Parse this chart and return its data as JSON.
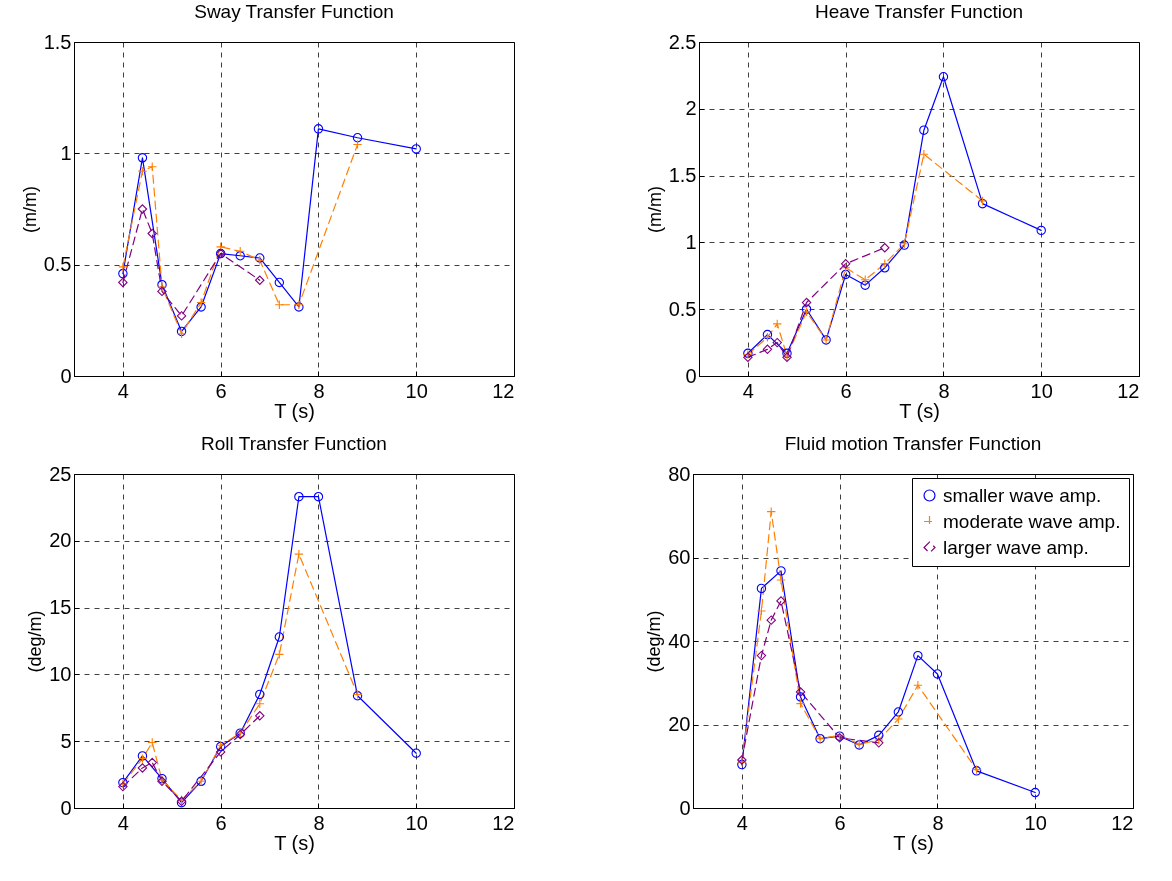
{
  "chart_data": [
    {
      "type": "line",
      "title": "Sway Transfer Function",
      "xlabel": "T (s)",
      "ylabel": "(m/m)",
      "xlim": [
        3,
        12
      ],
      "xticks": [
        4,
        6,
        8,
        10,
        12
      ],
      "ylim": [
        0,
        1.5
      ],
      "yticks": [
        0,
        0.5,
        1,
        1.5
      ],
      "grid": true,
      "legend": false,
      "series": [
        {
          "color": "#0000ff",
          "marker": "circle",
          "line_style": "solid",
          "x": [
            4,
            4.4,
            4.8,
            5.2,
            5.6,
            6,
            6.4,
            6.8,
            7.2,
            7.6,
            8,
            8.8,
            10
          ],
          "values": [
            0.46,
            0.98,
            0.41,
            0.2,
            0.31,
            0.55,
            0.54,
            0.53,
            0.42,
            0.31,
            1.11,
            1.07,
            1.02
          ]
        },
        {
          "color": "#ff8000",
          "marker": "cross",
          "line_style": "dashed",
          "x": [
            4,
            4.4,
            4.6,
            4.8,
            5.2,
            5.6,
            6,
            6.4,
            6.8,
            7.2,
            7.6,
            8.8
          ],
          "values": [
            0.49,
            0.92,
            0.94,
            0.4,
            0.19,
            0.33,
            0.58,
            0.56,
            0.52,
            0.32,
            0.32,
            1.04
          ]
        },
        {
          "color": "#800080",
          "marker": "diamond",
          "line_style": "dashed",
          "x": [
            4,
            4.4,
            4.6,
            4.8,
            5.2,
            6,
            6.8
          ],
          "values": [
            0.42,
            0.75,
            0.64,
            0.38,
            0.27,
            0.55,
            0.43
          ]
        }
      ]
    },
    {
      "type": "line",
      "title": "Heave Transfer Function",
      "xlabel": "T (s)",
      "ylabel": "(m/m)",
      "xlim": [
        3,
        12
      ],
      "xticks": [
        4,
        6,
        8,
        10,
        12
      ],
      "ylim": [
        0,
        2.5
      ],
      "yticks": [
        0,
        0.5,
        1,
        1.5,
        2,
        2.5
      ],
      "grid": true,
      "legend": false,
      "series": [
        {
          "color": "#0000ff",
          "marker": "circle",
          "line_style": "solid",
          "x": [
            4,
            4.4,
            4.8,
            5.2,
            5.6,
            6,
            6.4,
            6.8,
            7.2,
            7.6,
            8,
            8.8,
            10
          ],
          "values": [
            0.17,
            0.31,
            0.17,
            0.5,
            0.27,
            0.76,
            0.68,
            0.81,
            0.98,
            1.84,
            2.24,
            1.29,
            1.09
          ]
        },
        {
          "color": "#ff8000",
          "marker": "cross",
          "line_style": "dashed",
          "x": [
            4,
            4.4,
            4.6,
            4.8,
            5.2,
            5.6,
            6,
            6.4,
            6.8,
            7.2,
            7.6,
            8.8
          ],
          "values": [
            0.16,
            0.29,
            0.39,
            0.15,
            0.48,
            0.27,
            0.81,
            0.72,
            0.84,
            0.99,
            1.66,
            1.31
          ]
        },
        {
          "color": "#800080",
          "marker": "diamond",
          "line_style": "dashed",
          "x": [
            4,
            4.4,
            4.6,
            4.8,
            5.2,
            6,
            6.8
          ],
          "values": [
            0.14,
            0.2,
            0.25,
            0.14,
            0.55,
            0.84,
            0.96
          ]
        }
      ]
    },
    {
      "type": "line",
      "title": "Roll Transfer Function",
      "xlabel": "T (s)",
      "ylabel": "(deg/m)",
      "xlim": [
        3,
        12
      ],
      "xticks": [
        4,
        6,
        8,
        10,
        12
      ],
      "ylim": [
        0,
        25
      ],
      "yticks": [
        0,
        5,
        10,
        15,
        20,
        25
      ],
      "grid": true,
      "legend": false,
      "series": [
        {
          "color": "#0000ff",
          "marker": "circle",
          "line_style": "solid",
          "x": [
            4,
            4.4,
            4.8,
            5.2,
            5.6,
            6,
            6.4,
            6.8,
            7.2,
            7.6,
            8,
            8.8,
            10
          ],
          "values": [
            1.9,
            3.9,
            2.2,
            0.4,
            2,
            4.6,
            5.6,
            8.5,
            12.8,
            23.3,
            23.3,
            8.4,
            4.1
          ]
        },
        {
          "color": "#ff8000",
          "marker": "cross",
          "line_style": "dashed",
          "x": [
            4,
            4.4,
            4.6,
            4.8,
            5.2,
            5.6,
            6,
            6.4,
            6.8,
            7.2,
            7.6,
            8.8
          ],
          "values": [
            1.8,
            3.7,
            4.9,
            2.1,
            0.6,
            2,
            4.7,
            5.6,
            7.8,
            11.5,
            19,
            8.5
          ]
        },
        {
          "color": "#800080",
          "marker": "diamond",
          "line_style": "dashed",
          "x": [
            4,
            4.4,
            4.6,
            4.8,
            5.2,
            6,
            6.4,
            6.8
          ],
          "values": [
            1.6,
            3,
            3.4,
            2,
            0.5,
            4.2,
            5.5,
            6.9
          ]
        }
      ]
    },
    {
      "type": "line",
      "title": "Fluid motion Transfer Function",
      "xlabel": "T (s)",
      "ylabel": "(deg/m)",
      "xlim": [
        3,
        12
      ],
      "xticks": [
        4,
        6,
        8,
        10,
        12
      ],
      "ylim": [
        0,
        80
      ],
      "yticks": [
        0,
        20,
        40,
        60,
        80
      ],
      "grid": true,
      "legend": "top right",
      "series": [
        {
          "name": "smaller wave amp.",
          "color": "#0000ff",
          "marker": "circle",
          "line_style": "solid",
          "x": [
            4,
            4.4,
            4.8,
            5.2,
            5.6,
            6,
            6.4,
            6.8,
            7.2,
            7.6,
            8,
            8.8,
            10
          ],
          "values": [
            10.4,
            52.6,
            56.8,
            26.6,
            16.6,
            17.2,
            15.1,
            17.4,
            23,
            36.5,
            32.1,
            8.9,
            3.7
          ]
        },
        {
          "name": "moderate wave amp.",
          "color": "#ff8000",
          "marker": "cross",
          "line_style": "dashed",
          "x": [
            4,
            4.4,
            4.6,
            4.8,
            5.2,
            5.6,
            6,
            6.4,
            6.8,
            7.2,
            7.6,
            8.8
          ],
          "values": [
            11,
            47.2,
            71,
            54.6,
            25,
            16.6,
            17.4,
            15.3,
            16.3,
            21.3,
            29.4,
            9.2
          ]
        },
        {
          "name": "larger wave amp.",
          "color": "#800080",
          "marker": "diamond",
          "line_style": "dashed",
          "x": [
            4,
            4.4,
            4.6,
            4.8,
            5.2,
            6,
            6.8
          ],
          "values": [
            11.5,
            36.5,
            45,
            49.6,
            27.8,
            16.8,
            15.6
          ]
        }
      ]
    }
  ]
}
